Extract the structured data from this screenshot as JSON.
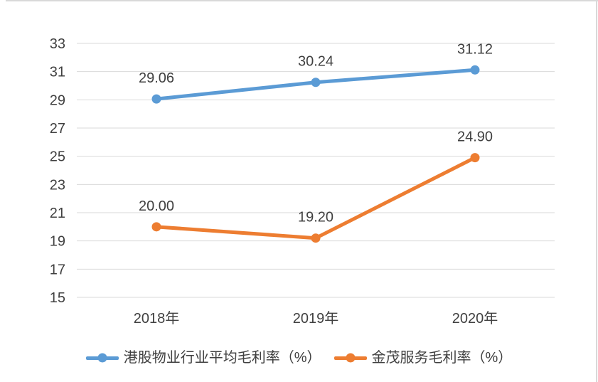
{
  "canvas": {
    "background": "#ffffff",
    "border_color": "#d9d9d9"
  },
  "chart_data": {
    "type": "line",
    "title": "",
    "xlabel": "",
    "ylabel": "",
    "categories": [
      "2018年",
      "2019年",
      "2020年"
    ],
    "series": [
      {
        "name": "港股物业行业平均毛利率（%）",
        "values": [
          29.06,
          30.24,
          31.12
        ],
        "labels": [
          "29.06",
          "30.24",
          "31.12"
        ],
        "color": "#5b9bd5"
      },
      {
        "name": "金茂服务毛利率（%）",
        "values": [
          20.0,
          19.2,
          24.9
        ],
        "labels": [
          "20.00",
          "19.20",
          "24.90"
        ],
        "color": "#ed7d31"
      }
    ],
    "ylim": [
      15,
      33
    ],
    "yticks": [
      15,
      17,
      19,
      21,
      23,
      25,
      27,
      29,
      31,
      33
    ],
    "grid": true,
    "gridline_color": "#d9d9d9",
    "text_color": "#404040",
    "legend_position": "bottom",
    "data_labels_shown": true
  }
}
